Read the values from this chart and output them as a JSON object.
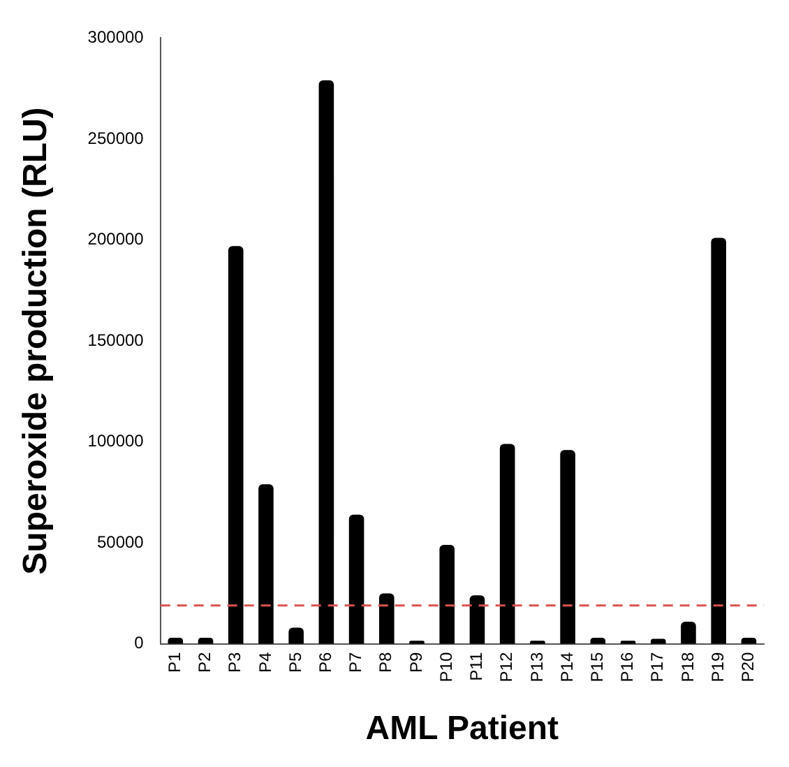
{
  "chart_data": {
    "type": "bar",
    "xlabel": "AML Patient",
    "ylabel": "Superoxide production (RLU)",
    "categories": [
      "P1",
      "P2",
      "P3",
      "P4",
      "P5",
      "P6",
      "P7",
      "P8",
      "P9",
      "P10",
      "P11",
      "P12",
      "P13",
      "P14",
      "P15",
      "P16",
      "P17",
      "P18",
      "P19",
      "P20"
    ],
    "values": [
      3000,
      3000,
      197000,
      79000,
      8000,
      279000,
      64000,
      25000,
      1500,
      49000,
      24000,
      99000,
      1500,
      96000,
      3000,
      1500,
      2500,
      11000,
      201000,
      3000
    ],
    "color": "#000000",
    "ylim": [
      0,
      300000
    ],
    "yticks": [
      0,
      50000,
      100000,
      150000,
      200000,
      250000,
      300000
    ],
    "grid": false,
    "legend": false,
    "ref_lines": [
      {
        "axis": "y",
        "value": 19000,
        "color": "#d9534f",
        "line_style": "dashed"
      }
    ]
  }
}
